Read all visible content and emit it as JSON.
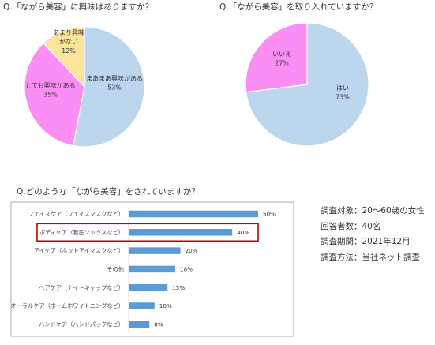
{
  "questions": {
    "q1": "Q.「ながら美容」に興味はありますか？",
    "q2": "Q.「ながら美容」を取り入れていますか？",
    "q3": "Q.どのような「ながら美容」をされていますか？"
  },
  "survey_info": [
    "調査対象：20～60歳の女性",
    "回答者数：40名",
    "調査期間：2021年12月",
    "調査方法：当社ネット調査"
  ],
  "chart_data": [
    {
      "type": "pie",
      "title": "Q.「ながら美容」に興味はありますか？",
      "slices": [
        {
          "label": [
            "まあまあ興味がある"
          ],
          "value": 53,
          "value_label": "53%",
          "color": "#bcd6ee"
        },
        {
          "label": [
            "とても興味がある"
          ],
          "value": 35,
          "value_label": "35%",
          "color": "#fb8ef5"
        },
        {
          "label": [
            "あまり興味",
            "がない"
          ],
          "value": 12,
          "value_label": "12%",
          "color": "#fce59a"
        }
      ]
    },
    {
      "type": "pie",
      "title": "Q.「ながら美容」を取り入れていますか？",
      "slices": [
        {
          "label": [
            "はい"
          ],
          "value": 73,
          "value_label": "73%",
          "color": "#bcd6ee"
        },
        {
          "label": [
            "いいえ"
          ],
          "value": 27,
          "value_label": "27%",
          "color": "#fb8ef5"
        }
      ]
    },
    {
      "type": "bar",
      "orientation": "horizontal",
      "title": "Q.どのような「ながら美容」をされていますか？",
      "categories": [
        "フェイスケア（フェイスマスクなど）",
        "ボディケア（着圧ソックスなど）",
        "アイケア（ホットアイマスクなど）",
        "その他",
        "ヘアケア（ナイトキャップなど）",
        "オーラルケア（ホームホワイトニングなど）",
        "ハンドケア（ハンドパックなど）"
      ],
      "values": [
        50,
        40,
        20,
        18,
        15,
        10,
        8
      ],
      "value_labels": [
        "50%",
        "40%",
        "20%",
        "18%",
        "15%",
        "10%",
        "8%"
      ],
      "highlighted_category": "ボディケア（着圧ソックスなど）",
      "bar_color": "#5b9bd5",
      "highlight_color": "#c00000"
    }
  ]
}
